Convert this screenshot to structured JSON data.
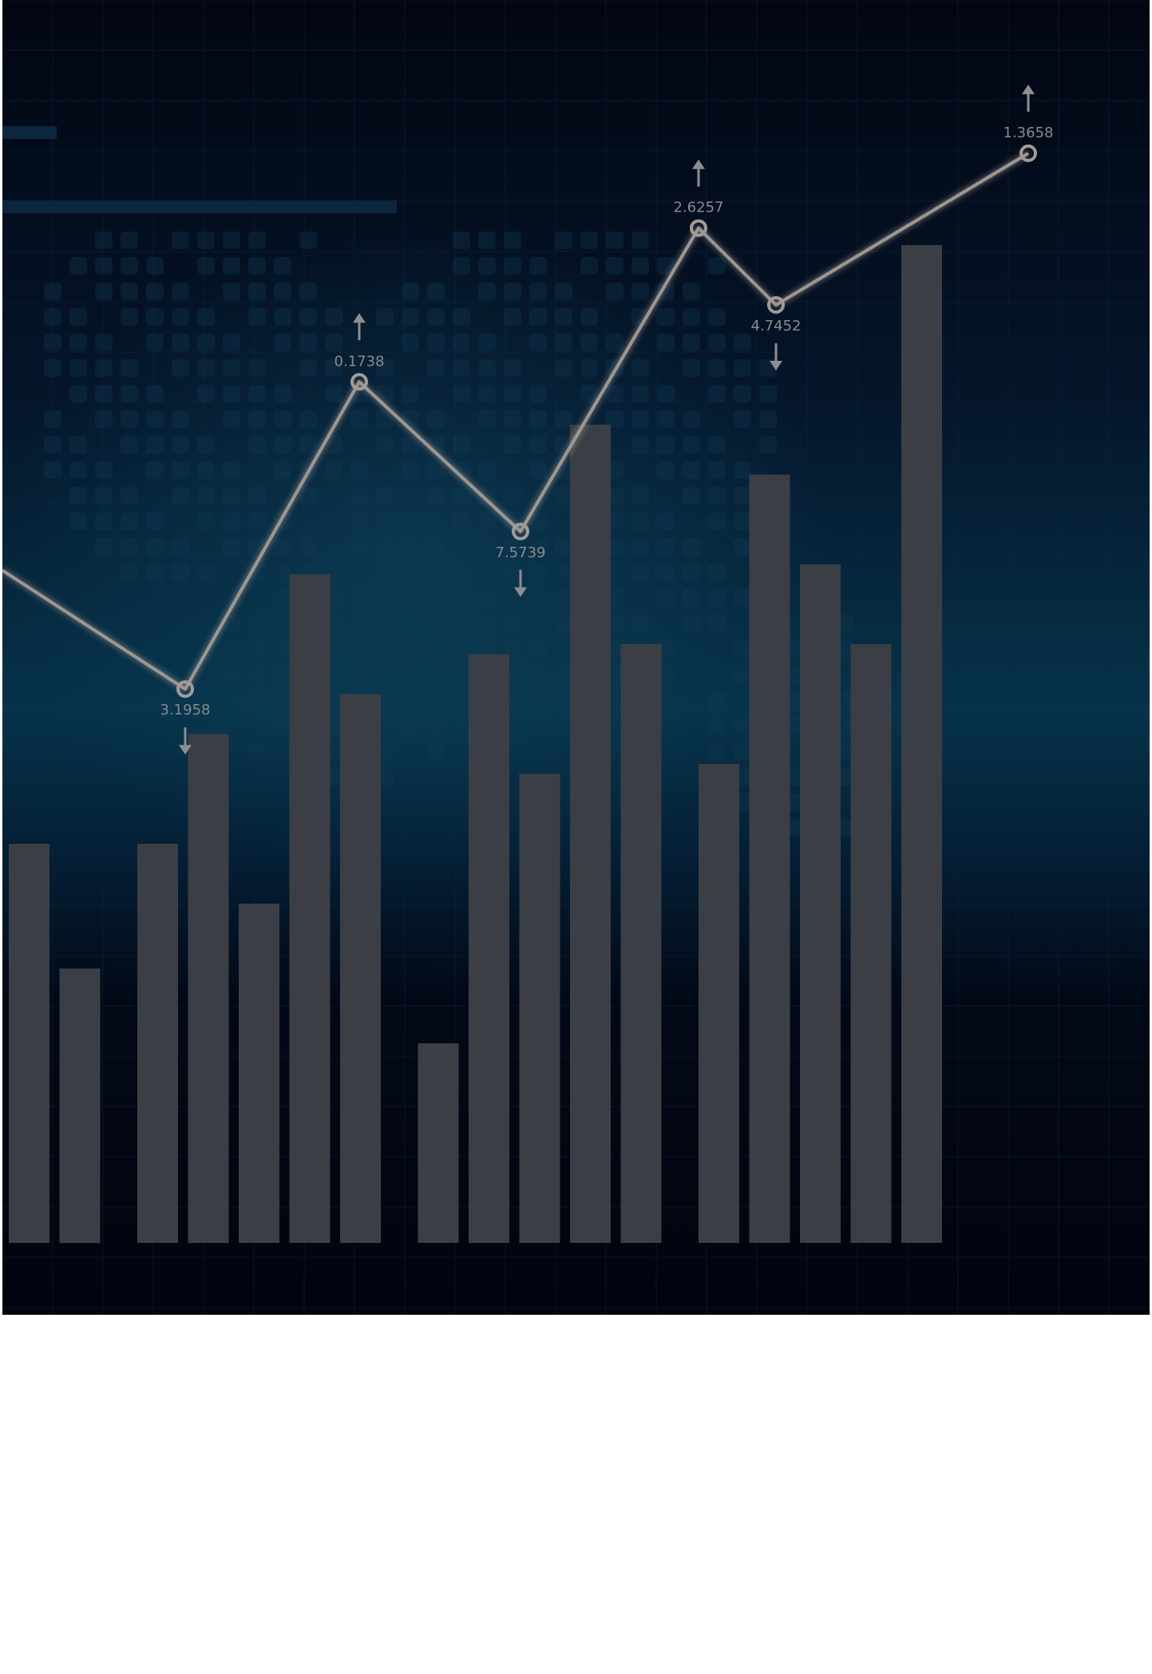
{
  "chart_data": {
    "type": "bar",
    "title": "",
    "xlabel": "",
    "ylabel": "",
    "ylim": [
      0,
      100
    ],
    "grid": true,
    "legend": "none",
    "bar_groups": [
      [
        40,
        27.5
      ],
      [
        40,
        51,
        34,
        67,
        55
      ],
      [
        20,
        59,
        47,
        82,
        60
      ],
      [
        48,
        77,
        68,
        60,
        100
      ]
    ],
    "line_series": {
      "points": [
        {
          "value": 67.4,
          "label": ""
        },
        {
          "value": 55.5,
          "label": "3.1958",
          "direction": "down"
        },
        {
          "value": 86.3,
          "label": "0.1738",
          "direction": "up"
        },
        {
          "value": 71.3,
          "label": "7.5739",
          "direction": "down"
        },
        {
          "value": 101.7,
          "label": "2.6257",
          "direction": "up"
        },
        {
          "value": 94.0,
          "label": "4.7452",
          "direction": "down"
        },
        {
          "value": 109.2,
          "label": "1.3658",
          "direction": "up"
        }
      ]
    },
    "colors": {
      "bar": "#3b3f45",
      "line": "#9e978f",
      "label": "#8a8a8a"
    }
  }
}
